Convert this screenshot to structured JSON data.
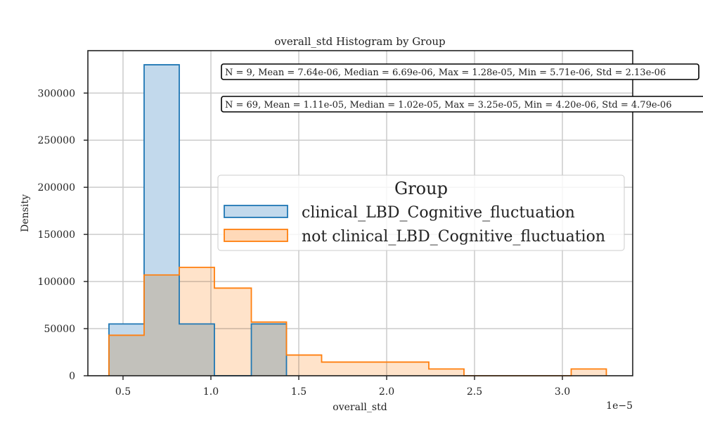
{
  "chart_data": {
    "type": "histogram",
    "title": "overall_std Histogram by Group",
    "xlabel": "overall_std",
    "ylabel": "Density",
    "x_scale_label": "1e−5",
    "xlim": [
      0.3,
      3.4
    ],
    "ylim": [
      0,
      345000
    ],
    "xticks": [
      0.5,
      1.0,
      1.5,
      2.0,
      2.5,
      3.0
    ],
    "xtick_labels": [
      "0.5",
      "1.0",
      "1.5",
      "2.0",
      "2.5",
      "3.0"
    ],
    "yticks": [
      0,
      50000,
      100000,
      150000,
      200000,
      250000,
      300000
    ],
    "ytick_labels": [
      "0",
      "50000",
      "100000",
      "150000",
      "200000",
      "250000",
      "300000"
    ],
    "grid": true,
    "legend": {
      "title": "Group",
      "placement": "center-right"
    },
    "series": [
      {
        "name": "clinical_LBD_Cognitive_fluctuation",
        "color": "#1f77b4",
        "fill": "#c2d9ec",
        "bin_edges": [
          0.42,
          0.62,
          0.82,
          1.02,
          1.23,
          1.43
        ],
        "values": [
          55000,
          330000,
          55000,
          0,
          55000
        ]
      },
      {
        "name": "not clinical_LBD_Cognitive_fluctuation",
        "color": "#ff7f0e",
        "fill": "#ffd9b8",
        "bin_edges": [
          0.42,
          0.62,
          0.82,
          1.02,
          1.23,
          1.43,
          1.63,
          1.84,
          2.04,
          2.24,
          2.44,
          2.65,
          2.85,
          3.05,
          3.25
        ],
        "values": [
          43000,
          107000,
          115000,
          93000,
          57000,
          22000,
          14500,
          14500,
          14500,
          7200,
          0,
          0,
          0,
          7200
        ]
      }
    ],
    "annotations": [
      "N = 9, Mean = 7.64e-06, Median = 6.69e-06, Max = 1.28e-05, Min = 5.71e-06, Std = 2.13e-06",
      "N = 69, Mean = 1.11e-05, Median = 1.02e-05, Max = 3.25e-05, Min = 4.20e-06, Std = 4.79e-06"
    ]
  }
}
